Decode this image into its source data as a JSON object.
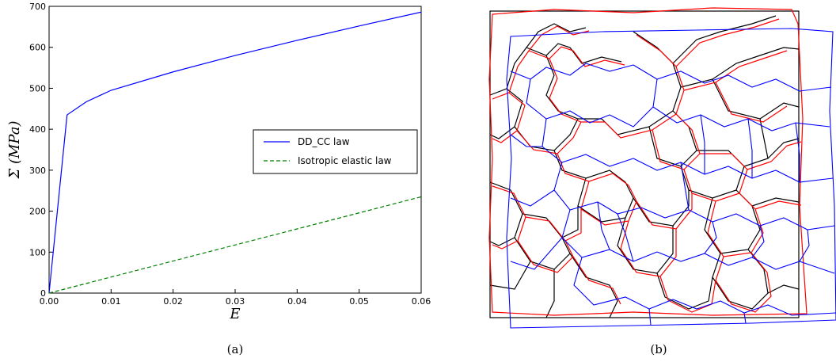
{
  "chart_data": [
    {
      "type": "line",
      "caption": "(a)",
      "xlabel": "E",
      "ylabel": "Σ (MPa)",
      "xlim": [
        0,
        0.06
      ],
      "ylim": [
        0,
        700
      ],
      "x_ticks": [
        "0.00",
        "0.01",
        "0.02",
        "0.03",
        "0.04",
        "0.05",
        "0.06"
      ],
      "y_ticks": [
        "0",
        "100",
        "200",
        "300",
        "400",
        "500",
        "600",
        "700"
      ],
      "grid": false,
      "legend_position": "center-right",
      "series": [
        {
          "name": "DD_CC law",
          "color": "#0000ff",
          "style": "solid",
          "x": [
            0,
            0.0029,
            0.006,
            0.01,
            0.02,
            0.03,
            0.04,
            0.05,
            0.06
          ],
          "y": [
            0,
            435,
            467,
            495,
            540,
            580,
            617,
            652,
            686
          ]
        },
        {
          "name": "Isotropic elastic law",
          "color": "#008000",
          "style": "dashed",
          "x": [
            0,
            0.06
          ],
          "y": [
            0,
            235
          ]
        }
      ]
    },
    {
      "type": "diagram",
      "caption": "(b)",
      "mesh_colors": [
        "#000000",
        "#ff0000",
        "#0000ff"
      ]
    }
  ]
}
